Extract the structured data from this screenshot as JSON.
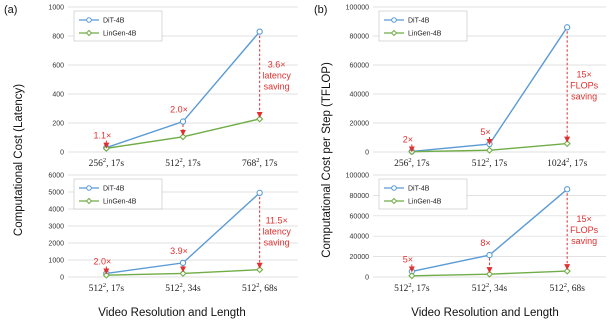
{
  "panels": [
    {
      "label": "(a)",
      "ylabel": "Computational Cost (Latency)",
      "xlabel": "Video Resolution and Length"
    },
    {
      "label": "(b)",
      "ylabel": "Computational Cost per Step (TFLOP)",
      "xlabel": "Video Resolution and Length"
    }
  ],
  "colors": {
    "dit": "#5b9bd5",
    "lingen": "#70ad47",
    "annotation": "#e0302f",
    "grid": "#d9d9d9"
  },
  "chart_data": [
    {
      "type": "line",
      "panel": "(a)",
      "categories": [
        {
          "base": "256",
          "sup": "2",
          "rest": ", 17s"
        },
        {
          "base": "512",
          "sup": "2",
          "rest": ", 17s"
        },
        {
          "base": "768",
          "sup": "2",
          "rest": ", 17s"
        }
      ],
      "ylim": [
        0,
        1000
      ],
      "yticks": [
        0,
        200,
        400,
        600,
        800,
        1000
      ],
      "yticklabels": [
        "0",
        "200",
        "400",
        "600",
        "800",
        "1000"
      ],
      "grid": true,
      "legend": "top-left",
      "series": [
        {
          "name": "DiT-4B",
          "values": [
            30,
            210,
            830
          ]
        },
        {
          "name": "LinGen-4B",
          "values": [
            25,
            105,
            228
          ]
        }
      ],
      "annotations": [
        {
          "index": 0,
          "lines": [
            "1.1×"
          ]
        },
        {
          "index": 1,
          "lines": [
            "2.0×"
          ]
        },
        {
          "index": 2,
          "lines": [
            "3.6×",
            "latency",
            "saving"
          ]
        }
      ]
    },
    {
      "type": "line",
      "panel": "(a)",
      "categories": [
        {
          "base": "512",
          "sup": "2",
          "rest": ", 17s"
        },
        {
          "base": "512",
          "sup": "2",
          "rest": ", 34s"
        },
        {
          "base": "512",
          "sup": "2",
          "rest": ", 68s"
        }
      ],
      "ylim": [
        0,
        6000
      ],
      "yticks": [
        0,
        1000,
        2000,
        3000,
        4000,
        5000,
        6000
      ],
      "yticklabels": [
        "0",
        "1000",
        "2000",
        "3000",
        "4000",
        "5000",
        "6000"
      ],
      "grid": true,
      "legend": "top-left",
      "series": [
        {
          "name": "DiT-4B",
          "values": [
            210,
            830,
            4950
          ]
        },
        {
          "name": "LinGen-4B",
          "values": [
            105,
            210,
            430
          ]
        }
      ],
      "annotations": [
        {
          "index": 0,
          "lines": [
            "2.0×"
          ]
        },
        {
          "index": 1,
          "lines": [
            "3.9×"
          ]
        },
        {
          "index": 2,
          "lines": [
            "11.5×",
            "latency",
            "saving"
          ]
        }
      ]
    },
    {
      "type": "line",
      "panel": "(b)",
      "categories": [
        {
          "base": "256",
          "sup": "2",
          "rest": ", 17s"
        },
        {
          "base": "512",
          "sup": "2",
          "rest": ", 17s"
        },
        {
          "base": "1024",
          "sup": "2",
          "rest": ", 17s"
        }
      ],
      "ylim": [
        0,
        100000
      ],
      "yticks": [
        0,
        20000,
        40000,
        60000,
        80000,
        100000
      ],
      "yticklabels": [
        "0",
        "20000",
        "40000",
        "60000",
        "80000",
        "100000"
      ],
      "grid": true,
      "legend": "top-left",
      "series": [
        {
          "name": "DiT-4B",
          "values": [
            400,
            5500,
            86000
          ]
        },
        {
          "name": "LinGen-4B",
          "values": [
            200,
            1200,
            5800
          ]
        }
      ],
      "annotations": [
        {
          "index": 0,
          "lines": [
            "2×"
          ]
        },
        {
          "index": 1,
          "lines": [
            "5×"
          ]
        },
        {
          "index": 2,
          "lines": [
            "15×",
            "FLOPs",
            "saving"
          ]
        }
      ]
    },
    {
      "type": "line",
      "panel": "(b)",
      "categories": [
        {
          "base": "512",
          "sup": "2",
          "rest": ", 17s"
        },
        {
          "base": "512",
          "sup": "2",
          "rest": ", 34s"
        },
        {
          "base": "512",
          "sup": "2",
          "rest": ", 68s"
        }
      ],
      "ylim": [
        0,
        100000
      ],
      "yticks": [
        0,
        20000,
        40000,
        60000,
        80000,
        100000
      ],
      "yticklabels": [
        "0",
        "20000",
        "40000",
        "60000",
        "80000",
        "100000"
      ],
      "grid": true,
      "legend": "top-left",
      "series": [
        {
          "name": "DiT-4B",
          "values": [
            5500,
            21500,
            86000
          ]
        },
        {
          "name": "LinGen-4B",
          "values": [
            1200,
            2800,
            5800
          ]
        }
      ],
      "annotations": [
        {
          "index": 0,
          "lines": [
            "5×"
          ]
        },
        {
          "index": 1,
          "lines": [
            "8×"
          ]
        },
        {
          "index": 2,
          "lines": [
            "15×",
            "FLOPs",
            "saving"
          ]
        }
      ]
    }
  ]
}
